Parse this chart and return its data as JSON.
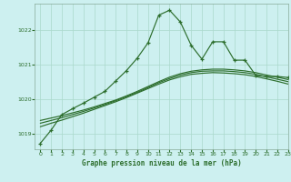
{
  "title": "Graphe pression niveau de la mer (hPa)",
  "bg_color": "#cdf0f0",
  "grid_color": "#aad8cc",
  "line_color": "#2d6e2d",
  "xlim": [
    -0.5,
    23
  ],
  "ylim": [
    1018.55,
    1022.75
  ],
  "yticks": [
    1019,
    1020,
    1021,
    1022
  ],
  "xticks": [
    0,
    1,
    2,
    3,
    4,
    5,
    6,
    7,
    8,
    9,
    10,
    11,
    12,
    13,
    14,
    15,
    16,
    17,
    18,
    19,
    20,
    21,
    22,
    23
  ],
  "main_series": [
    1018.72,
    1019.1,
    1019.55,
    1019.72,
    1019.88,
    1020.05,
    1020.22,
    1020.52,
    1020.82,
    1021.18,
    1021.62,
    1022.42,
    1022.56,
    1022.22,
    1021.55,
    1021.15,
    1021.65,
    1021.65,
    1021.12,
    1021.12,
    1020.68,
    1020.65,
    1020.65,
    1020.62
  ],
  "smooth1": [
    1019.38,
    1019.45,
    1019.52,
    1019.6,
    1019.68,
    1019.77,
    1019.87,
    1019.97,
    1020.09,
    1020.22,
    1020.36,
    1020.5,
    1020.63,
    1020.73,
    1020.8,
    1020.84,
    1020.86,
    1020.86,
    1020.84,
    1020.81,
    1020.76,
    1020.69,
    1020.63,
    1020.56
  ],
  "smooth2": [
    1019.3,
    1019.38,
    1019.46,
    1019.55,
    1019.64,
    1019.74,
    1019.84,
    1019.95,
    1020.07,
    1020.19,
    1020.33,
    1020.47,
    1020.59,
    1020.69,
    1020.76,
    1020.8,
    1020.81,
    1020.81,
    1020.79,
    1020.76,
    1020.71,
    1020.64,
    1020.57,
    1020.5
  ],
  "smooth3": [
    1019.2,
    1019.3,
    1019.39,
    1019.49,
    1019.59,
    1019.7,
    1019.81,
    1019.92,
    1020.04,
    1020.17,
    1020.3,
    1020.43,
    1020.55,
    1020.64,
    1020.71,
    1020.74,
    1020.76,
    1020.75,
    1020.73,
    1020.7,
    1020.65,
    1020.58,
    1020.51,
    1020.43
  ]
}
